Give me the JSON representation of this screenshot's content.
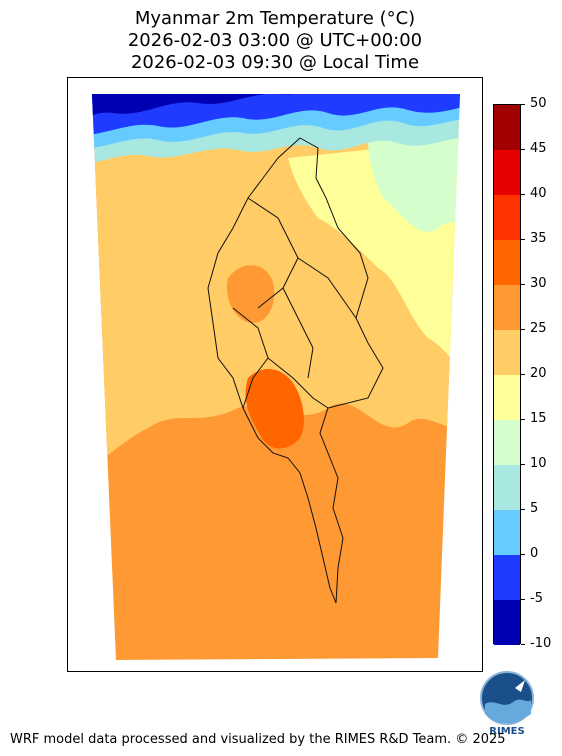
{
  "title": {
    "line1": "Myanmar 2m Temperature (°C)",
    "line2": "2026-02-03 03:00 @ UTC+00:00",
    "line3": "2026-02-03 09:30 @ Local Time"
  },
  "colorbar": {
    "levels": [
      -10,
      -5,
      0,
      5,
      10,
      15,
      20,
      25,
      30,
      35,
      40,
      45,
      50
    ],
    "colors": [
      "#0000b3",
      "#1f3bff",
      "#66ccff",
      "#a8e8e0",
      "#d4ffcc",
      "#ffff99",
      "#ffcc66",
      "#ff9933",
      "#ff6600",
      "#ff3300",
      "#e60000",
      "#a00000"
    ],
    "tick_labels": [
      "-10",
      "-5",
      "0",
      "5",
      "10",
      "15",
      "20",
      "25",
      "30",
      "35",
      "40",
      "45",
      "50"
    ]
  },
  "logo": {
    "text": "RIMES",
    "icon": "rimes-logo-icon"
  },
  "footer": "WRF model data processed and visualized by the RIMES R&D Team. © 2025"
}
